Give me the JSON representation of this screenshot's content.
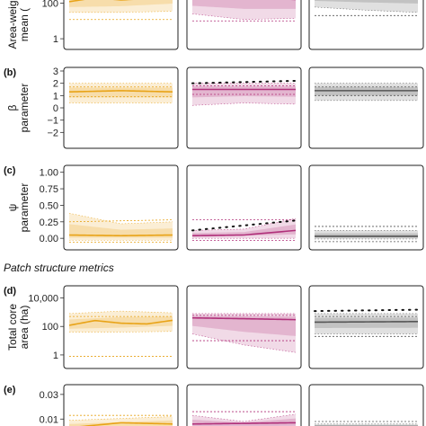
{
  "chart_data": {
    "type": "line",
    "section_title": "Patch structure metrics",
    "series_colors": [
      "#e8a317",
      "#b0307a",
      "#555555"
    ],
    "rows": [
      {
        "id": "a",
        "label": "",
        "ylabel_lines": [
          "Area-weig",
          "mean ("
        ],
        "scale": "log",
        "ylim": [
          0.4,
          300
        ],
        "ticks": [
          1,
          100
        ],
        "tick_labels": [
          "1",
          "100"
        ],
        "panels": [
          {
            "mean": [
              [
                0,
                120
              ],
              [
                0.25,
                200
              ],
              [
                0.5,
                150
              ],
              [
                0.75,
                180
              ],
              [
                1,
                250
              ]
            ],
            "upper": [
              [
                0,
                400
              ],
              [
                0.5,
                420
              ],
              [
                1,
                400
              ]
            ],
            "lower": [
              [
                0,
                30
              ],
              [
                0.5,
                30
              ],
              [
                1,
                35
              ]
            ],
            "upper2": [
              [
                0,
                380
              ],
              [
                1,
                380
              ]
            ],
            "lower2": [
              [
                0,
                12
              ],
              [
                1,
                12
              ]
            ],
            "dots": []
          },
          {
            "mean": [
              [
                0,
                200
              ],
              [
                0.5,
                190
              ],
              [
                1,
                160
              ]
            ],
            "upper": [
              [
                0,
                400
              ],
              [
                1,
                400
              ]
            ],
            "lower": [
              [
                0,
                25
              ],
              [
                0.5,
                12
              ],
              [
                1,
                14
              ]
            ],
            "upper2": [
              [
                0,
                380
              ],
              [
                1,
                380
              ]
            ],
            "lower2": [
              [
                0,
                10
              ],
              [
                1,
                10
              ]
            ],
            "dots": [
              [
                0,
                240
              ],
              [
                1,
                280
              ]
            ]
          },
          {
            "mean": [
              [
                0,
                300
              ],
              [
                1,
                300
              ]
            ],
            "upper": [
              [
                0,
                400
              ],
              [
                1,
                400
              ]
            ],
            "lower": [
              [
                0,
                60
              ],
              [
                0.5,
                40
              ],
              [
                1,
                30
              ]
            ],
            "upper2": [
              [
                0,
                380
              ],
              [
                1,
                380
              ]
            ],
            "lower2": [
              [
                0,
                20
              ],
              [
                1,
                20
              ]
            ],
            "dots": []
          }
        ]
      },
      {
        "id": "b",
        "label": "(b)",
        "ylabel_lines": [
          "β",
          "parameter"
        ],
        "scale": "linear",
        "ylim": [
          -3,
          3
        ],
        "ticks": [
          -2,
          -1,
          0,
          1,
          2,
          3
        ],
        "tick_labels": [
          "−2",
          "−1",
          "0",
          "1",
          "2",
          "3"
        ],
        "panels": [
          {
            "mean": [
              [
                0,
                1.3
              ],
              [
                0.5,
                1.4
              ],
              [
                1,
                1.3
              ]
            ],
            "upper": [
              [
                0,
                2.0
              ],
              [
                1,
                2.0
              ]
            ],
            "lower": [
              [
                0,
                0.4
              ],
              [
                1,
                0.4
              ]
            ],
            "upper2": [
              [
                0,
                1.7
              ],
              [
                1,
                1.7
              ]
            ],
            "lower2": [
              [
                0,
                0.9
              ],
              [
                1,
                0.9
              ]
            ],
            "dots": []
          },
          {
            "mean": [
              [
                0,
                1.5
              ],
              [
                1,
                1.5
              ]
            ],
            "upper": [
              [
                0,
                2.0
              ],
              [
                1,
                2.0
              ]
            ],
            "lower": [
              [
                0,
                0.2
              ],
              [
                0.5,
                0.4
              ],
              [
                1,
                0.3
              ]
            ],
            "upper2": [
              [
                0,
                1.8
              ],
              [
                1,
                1.8
              ]
            ],
            "lower2": [
              [
                0,
                1.1
              ],
              [
                1,
                1.1
              ]
            ],
            "dots": [
              [
                0,
                2.0
              ],
              [
                1,
                2.2
              ]
            ]
          },
          {
            "mean": [
              [
                0,
                1.4
              ],
              [
                1,
                1.4
              ]
            ],
            "upper": [
              [
                0,
                2.0
              ],
              [
                1,
                2.0
              ]
            ],
            "lower": [
              [
                0,
                0.6
              ],
              [
                1,
                0.6
              ]
            ],
            "upper2": [
              [
                0,
                1.7
              ],
              [
                1,
                1.7
              ]
            ],
            "lower2": [
              [
                0,
                1.0
              ],
              [
                1,
                1.0
              ]
            ],
            "dots": []
          }
        ]
      },
      {
        "id": "c",
        "label": "(c)",
        "ylabel_lines": [
          "ψ",
          "parameter"
        ],
        "scale": "linear",
        "ylim": [
          -0.12,
          1.05
        ],
        "ticks": [
          0,
          0.25,
          0.5,
          0.75,
          1
        ],
        "tick_labels": [
          "0.00",
          "0.25",
          "0.50",
          "0.75",
          "1.00"
        ],
        "panels": [
          {
            "mean": [
              [
                0,
                0.05
              ],
              [
                0.5,
                0.04
              ],
              [
                1,
                0.05
              ]
            ],
            "upper": [
              [
                0,
                0.38
              ],
              [
                0.5,
                0.22
              ],
              [
                1,
                0.25
              ]
            ],
            "lower": [
              [
                0,
                -0.03
              ],
              [
                1,
                -0.03
              ]
            ],
            "upper2": [
              [
                0,
                0.25
              ],
              [
                1,
                0.28
              ]
            ],
            "lower2": [
              [
                0,
                -0.06
              ],
              [
                1,
                -0.06
              ]
            ],
            "dots": []
          },
          {
            "mean": [
              [
                0,
                0.04
              ],
              [
                0.5,
                0.05
              ],
              [
                1,
                0.12
              ]
            ],
            "upper": [
              [
                0,
                0.12
              ],
              [
                0.5,
                0.14
              ],
              [
                1,
                0.3
              ]
            ],
            "lower": [
              [
                0,
                0.0
              ],
              [
                1,
                0.0
              ]
            ],
            "upper2": [
              [
                0,
                0.28
              ],
              [
                1,
                0.28
              ]
            ],
            "lower2": [
              [
                0,
                -0.03
              ],
              [
                1,
                -0.03
              ]
            ],
            "dots": [
              [
                0,
                0.12
              ],
              [
                1,
                0.27
              ]
            ]
          },
          {
            "mean": [
              [
                0,
                0.03
              ],
              [
                1,
                0.03
              ]
            ],
            "upper": [
              [
                0,
                0.12
              ],
              [
                1,
                0.12
              ]
            ],
            "lower": [
              [
                0,
                -0.01
              ],
              [
                1,
                -0.01
              ]
            ],
            "upper2": [
              [
                0,
                0.18
              ],
              [
                1,
                0.18
              ]
            ],
            "lower2": [
              [
                0,
                -0.05
              ],
              [
                1,
                -0.05
              ]
            ],
            "dots": []
          }
        ]
      },
      {
        "id": "d",
        "label": "(d)",
        "ylabel_lines": [
          "Total core",
          "area (ha)"
        ],
        "scale": "log",
        "ylim": [
          0.2,
          40000
        ],
        "ticks": [
          1,
          100,
          10000
        ],
        "tick_labels": [
          "1",
          "100",
          "10,000"
        ],
        "panels": [
          {
            "mean": [
              [
                0,
                120
              ],
              [
                0.25,
                260
              ],
              [
                0.5,
                170
              ],
              [
                0.75,
                150
              ],
              [
                1,
                270
              ]
            ],
            "upper": [
              [
                0,
                800
              ],
              [
                0.5,
                1200
              ],
              [
                1,
                900
              ]
            ],
            "lower": [
              [
                0,
                40
              ],
              [
                0.5,
                40
              ],
              [
                1,
                45
              ]
            ],
            "upper2": [
              [
                0,
                500
              ],
              [
                1,
                500
              ]
            ],
            "lower2": [
              [
                0,
                0.8
              ],
              [
                1,
                0.8
              ]
            ],
            "dots": []
          },
          {
            "mean": [
              [
                0,
                400
              ],
              [
                0.5,
                350
              ],
              [
                1,
                300
              ]
            ],
            "upper": [
              [
                0,
                800
              ],
              [
                1,
                800
              ]
            ],
            "lower": [
              [
                0,
                30
              ],
              [
                0.5,
                5
              ],
              [
                1,
                1.5
              ]
            ],
            "upper2": [
              [
                0,
                600
              ],
              [
                1,
                600
              ]
            ],
            "lower2": [
              [
                0,
                10
              ],
              [
                1,
                10
              ]
            ],
            "dots": []
          },
          {
            "mean": [
              [
                0,
                200
              ],
              [
                1,
                220
              ]
            ],
            "upper": [
              [
                0,
                800
              ],
              [
                1,
                800
              ]
            ],
            "lower": [
              [
                0,
                30
              ],
              [
                1,
                30
              ]
            ],
            "upper2": [
              [
                0,
                500
              ],
              [
                1,
                500
              ]
            ],
            "lower2": [
              [
                0,
                20
              ],
              [
                1,
                20
              ]
            ],
            "dots": [
              [
                0,
                1200
              ],
              [
                1,
                1500
              ]
            ]
          }
        ]
      },
      {
        "id": "e",
        "label": "(e)",
        "ylabel_lines": [
          "",
          ""
        ],
        "scale": "linear",
        "ylim": [
          0,
          0.035
        ],
        "ticks": [
          0.01,
          0.03
        ],
        "tick_labels": [
          "0.01",
          "0.03"
        ],
        "panels": [
          {
            "mean": [
              [
                0,
                0.003
              ],
              [
                0.5,
                0.007
              ],
              [
                1,
                0.006
              ]
            ],
            "upper": [
              [
                0,
                0.009
              ],
              [
                1,
                0.012
              ]
            ],
            "lower": [
              [
                0,
                0.001
              ],
              [
                1,
                0.001
              ]
            ],
            "upper2": [
              [
                0,
                0.013
              ],
              [
                1,
                0.013
              ]
            ],
            "lower2": [
              [
                0,
                0.002
              ],
              [
                1,
                0.002
              ]
            ],
            "dots": []
          },
          {
            "mean": [
              [
                0,
                0.006
              ],
              [
                1,
                0.007
              ]
            ],
            "upper": [
              [
                0,
                0.013
              ],
              [
                0.5,
                0.008
              ],
              [
                1,
                0.014
              ]
            ],
            "lower": [
              [
                0,
                0.002
              ],
              [
                1,
                0.002
              ]
            ],
            "upper2": [
              [
                0,
                0.016
              ],
              [
                1,
                0.016
              ]
            ],
            "lower2": [
              [
                0,
                0.001
              ],
              [
                1,
                0.001
              ]
            ],
            "dots": []
          },
          {
            "mean": [
              [
                0,
                0.004
              ],
              [
                1,
                0.004
              ]
            ],
            "upper": [
              [
                0,
                0.006
              ],
              [
                1,
                0.006
              ]
            ],
            "lower": [
              [
                0,
                0.002
              ],
              [
                1,
                0.002
              ]
            ],
            "upper2": [
              [
                0,
                0.008
              ],
              [
                1,
                0.008
              ]
            ],
            "lower2": [
              [
                0,
                0.001
              ],
              [
                1,
                0.001
              ]
            ],
            "dots": []
          }
        ]
      }
    ]
  }
}
